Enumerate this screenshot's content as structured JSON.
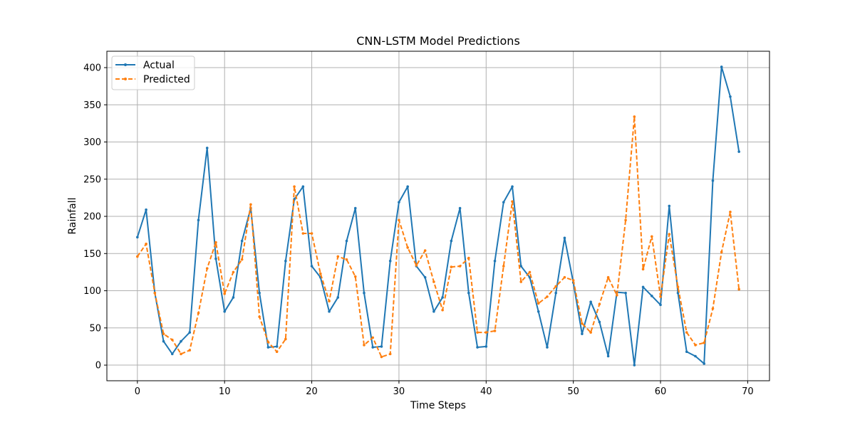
{
  "chart_data": {
    "type": "line",
    "title": "CNN-LSTM Model Predictions",
    "xlabel": "Time Steps",
    "ylabel": "Rainfall",
    "xlim": [
      -3.5,
      72.5
    ],
    "ylim": [
      -21,
      422
    ],
    "xticks": [
      0,
      10,
      20,
      30,
      40,
      50,
      60,
      70
    ],
    "yticks": [
      0,
      50,
      100,
      150,
      200,
      250,
      300,
      350,
      400
    ],
    "grid": true,
    "legend_position": "upper-left",
    "series": [
      {
        "name": "Actual",
        "color": "#1f77b4",
        "style": "solid-with-dots",
        "x": [
          0,
          1,
          2,
          3,
          4,
          5,
          6,
          7,
          8,
          9,
          10,
          11,
          12,
          13,
          14,
          15,
          16,
          17,
          18,
          19,
          20,
          21,
          22,
          23,
          24,
          25,
          26,
          27,
          28,
          29,
          30,
          31,
          32,
          33,
          34,
          35,
          36,
          37,
          38,
          39,
          40,
          41,
          42,
          43,
          44,
          45,
          46,
          47,
          48,
          49,
          50,
          51,
          52,
          53,
          54,
          55,
          56,
          57,
          58,
          59,
          60,
          61,
          62,
          63,
          64,
          65,
          66,
          67,
          68,
          69
        ],
        "values": [
          172,
          209,
          97,
          32,
          15,
          32,
          44,
          195,
          292,
          143,
          72,
          91,
          167,
          211,
          97,
          24,
          25,
          140,
          223,
          240,
          133,
          118,
          72,
          91,
          167,
          211,
          97,
          24,
          25,
          140,
          219,
          240,
          133,
          118,
          72,
          91,
          167,
          211,
          97,
          24,
          25,
          140,
          219,
          240,
          133,
          118,
          72,
          24,
          97,
          171,
          111,
          42,
          85,
          58,
          12,
          98,
          97,
          0,
          105,
          93,
          81,
          214,
          97,
          18,
          12,
          2,
          248,
          401,
          361,
          287
        ]
      },
      {
        "name": "Predicted",
        "color": "#ff7f0e",
        "style": "dashed",
        "x": [
          0,
          1,
          2,
          3,
          4,
          5,
          6,
          7,
          8,
          9,
          10,
          11,
          12,
          13,
          14,
          15,
          16,
          17,
          18,
          19,
          20,
          21,
          22,
          23,
          24,
          25,
          26,
          27,
          28,
          29,
          30,
          31,
          32,
          33,
          34,
          35,
          36,
          37,
          38,
          39,
          40,
          41,
          42,
          43,
          44,
          45,
          46,
          47,
          48,
          49,
          50,
          51,
          52,
          53,
          54,
          55,
          56,
          57,
          58,
          59,
          60,
          61,
          62,
          63,
          64,
          65,
          66,
          67,
          68,
          69
        ],
        "values": [
          146,
          163,
          97,
          42,
          34,
          15,
          20,
          70,
          130,
          165,
          96,
          125,
          142,
          216,
          65,
          31,
          18,
          35,
          240,
          177,
          177,
          123,
          86,
          146,
          142,
          119,
          27,
          37,
          11,
          15,
          195,
          158,
          134,
          154,
          112,
          74,
          132,
          133,
          144,
          44,
          44,
          46,
          133,
          220,
          112,
          125,
          83,
          92,
          106,
          118,
          114,
          56,
          44,
          82,
          118,
          94,
          195,
          334,
          129,
          173,
          92,
          176,
          105,
          44,
          27,
          30,
          76,
          152,
          206,
          102
        ]
      }
    ]
  }
}
